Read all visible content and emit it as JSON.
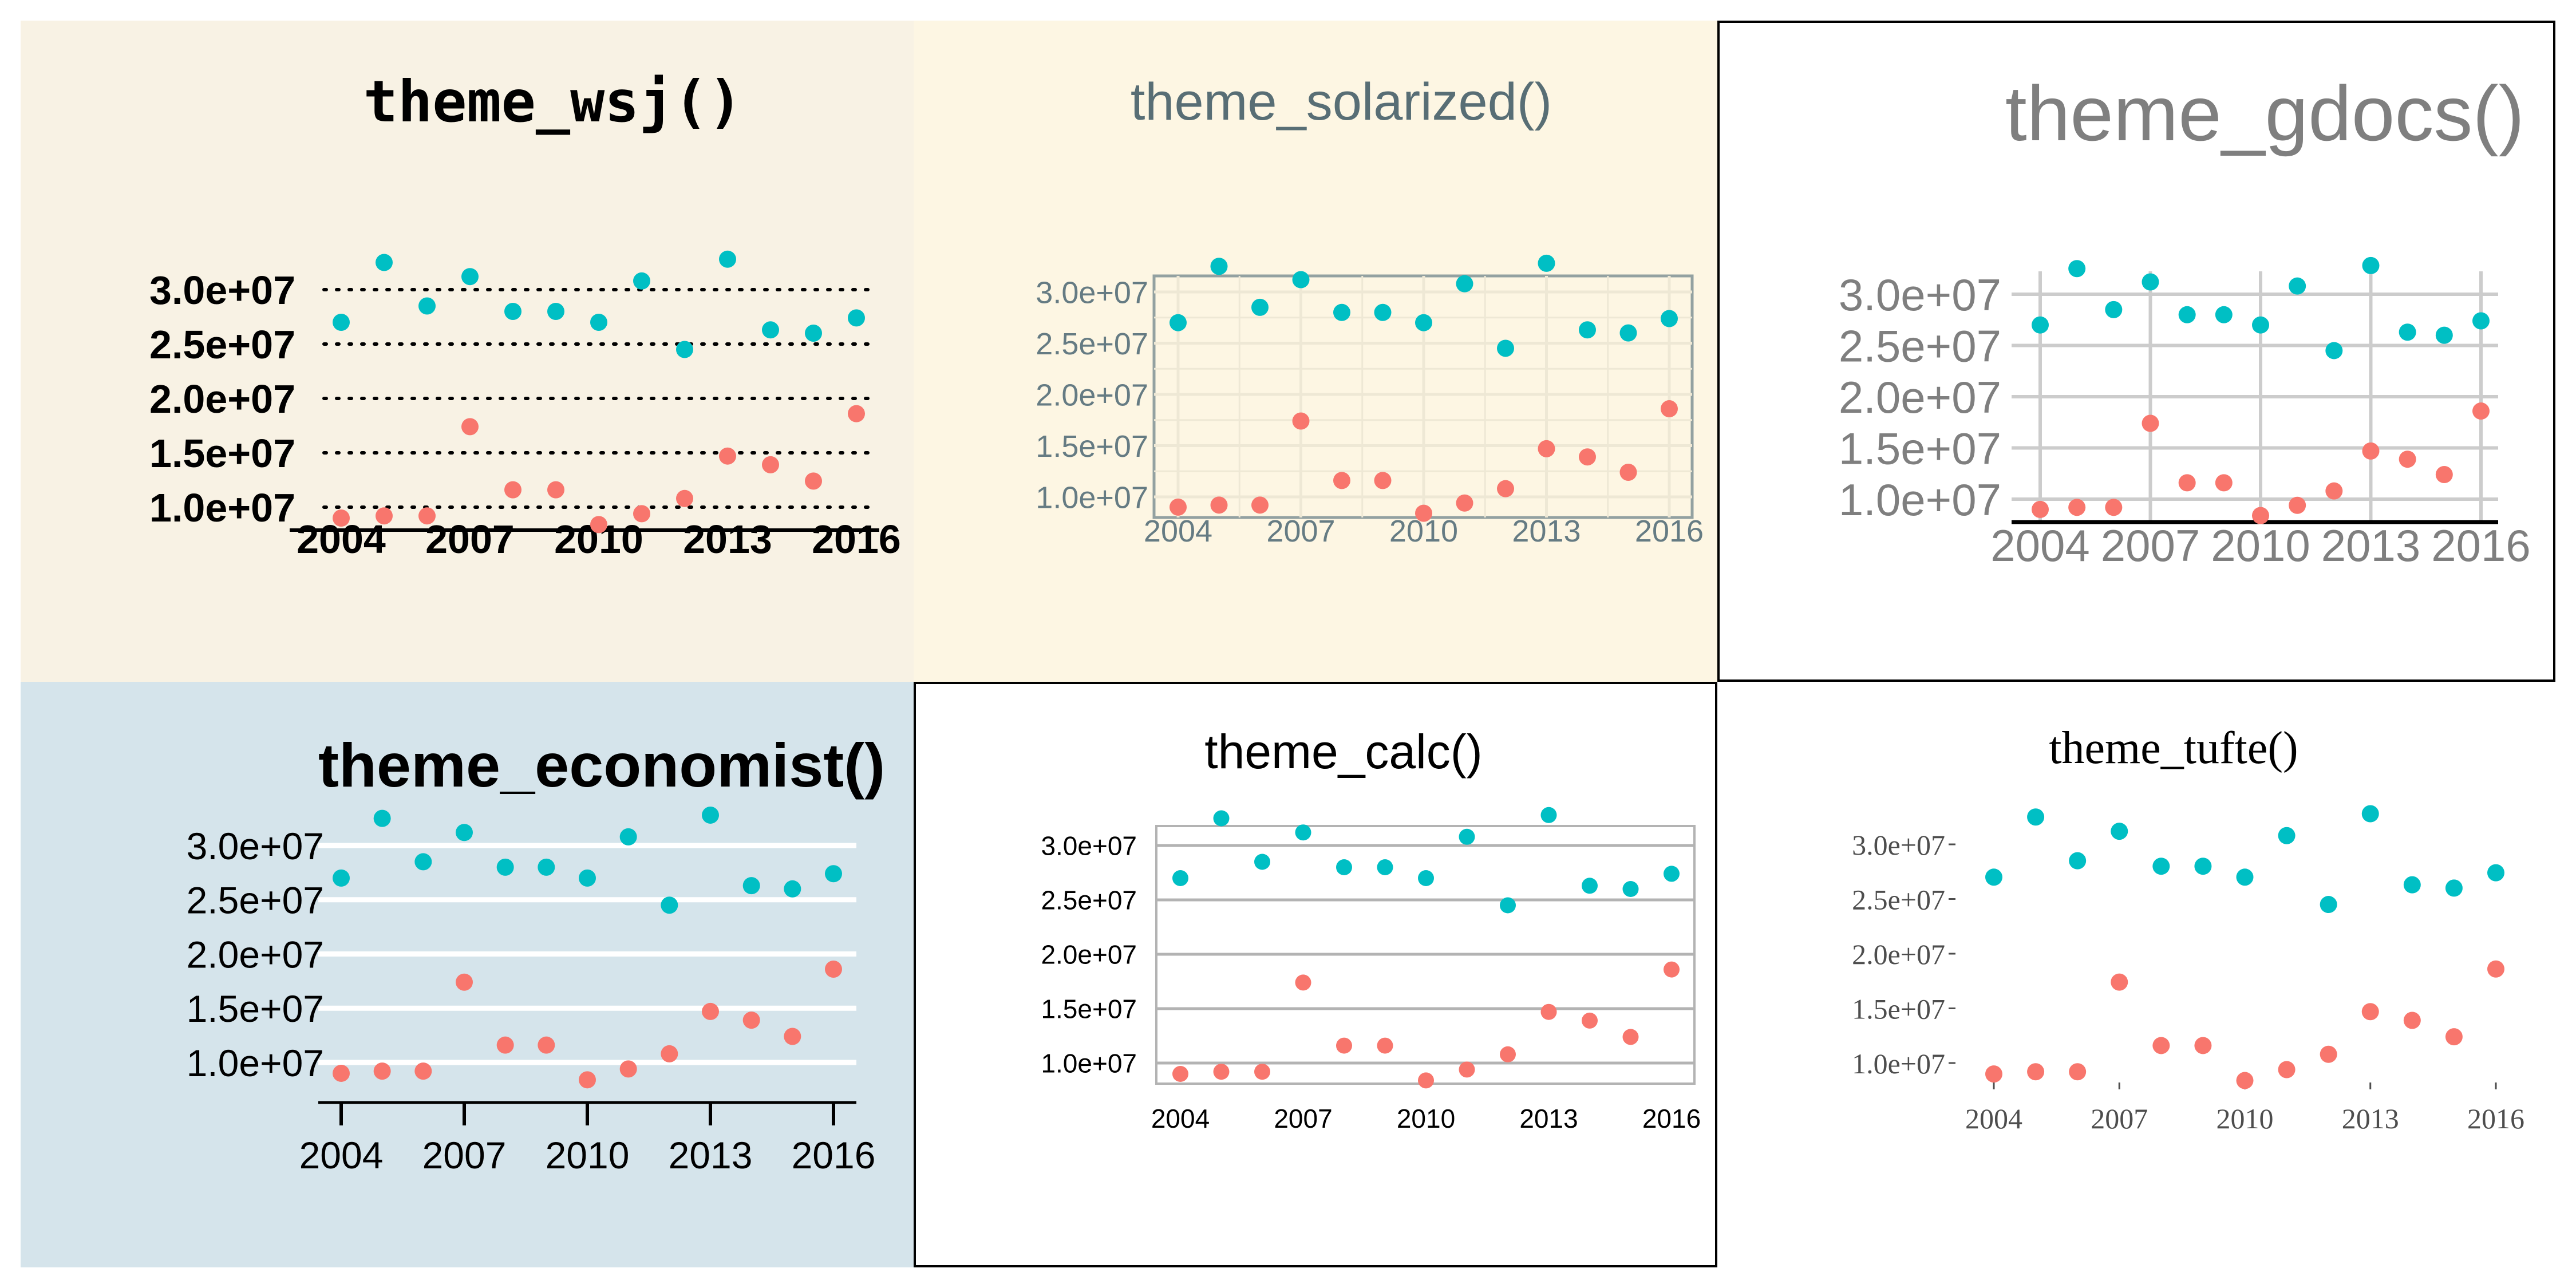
{
  "chart_data": [
    {
      "id": "wsj",
      "type": "scatter",
      "title": "theme_wsj()",
      "xlabel": "",
      "ylabel": "",
      "x_ticks": [
        2004,
        2007,
        2010,
        2013,
        2016
      ],
      "y_ticks": [
        10000000,
        15000000,
        20000000,
        25000000,
        30000000
      ],
      "y_tick_labels": [
        "1.0e+07",
        "1.5e+07",
        "2.0e+07",
        "2.5e+07",
        "3.0e+07"
      ],
      "xlim": [
        2004,
        2016
      ],
      "ylim": [
        8500000,
        33000000
      ],
      "grid": "horizontal dotted",
      "legend": "none",
      "series": [
        {
          "color": "#00bfc4",
          "x": [
            2004,
            2005,
            2006,
            2007,
            2008,
            2009,
            2010,
            2011,
            2012,
            2013,
            2014,
            2015,
            2016
          ],
          "y": [
            27000000,
            32500000,
            28500000,
            31200000,
            28000000,
            28000000,
            27000000,
            30800000,
            24500000,
            32800000,
            26300000,
            26000000,
            27400000
          ]
        },
        {
          "color": "#f8766d",
          "x": [
            2004,
            2005,
            2006,
            2007,
            2008,
            2009,
            2010,
            2011,
            2012,
            2013,
            2014,
            2015,
            2016
          ],
          "y": [
            9000000,
            9200000,
            9200000,
            17400000,
            11600000,
            11600000,
            8400000,
            9400000,
            10800000,
            14700000,
            13900000,
            12400000,
            18600000
          ]
        }
      ]
    },
    {
      "id": "solarized",
      "type": "scatter",
      "title": "theme_solarized()",
      "xlabel": "",
      "ylabel": "",
      "x_ticks": [
        2004,
        2007,
        2010,
        2013,
        2016
      ],
      "y_ticks": [
        10000000,
        15000000,
        20000000,
        25000000,
        30000000
      ],
      "y_tick_labels": [
        "1.0e+07",
        "1.5e+07",
        "2.0e+07",
        "2.5e+07",
        "3.0e+07"
      ],
      "xlim": [
        2004,
        2016
      ],
      "ylim": [
        8500000,
        33000000
      ],
      "grid": "major and minor",
      "legend": "none",
      "series": [
        {
          "color": "#00bfc4",
          "x": [
            2004,
            2005,
            2006,
            2007,
            2008,
            2009,
            2010,
            2011,
            2012,
            2013,
            2014,
            2015,
            2016
          ],
          "y": [
            27000000,
            32500000,
            28500000,
            31200000,
            28000000,
            28000000,
            27000000,
            30800000,
            24500000,
            32800000,
            26300000,
            26000000,
            27400000
          ]
        },
        {
          "color": "#f8766d",
          "x": [
            2004,
            2005,
            2006,
            2007,
            2008,
            2009,
            2010,
            2011,
            2012,
            2013,
            2014,
            2015,
            2016
          ],
          "y": [
            9000000,
            9200000,
            9200000,
            17400000,
            11600000,
            11600000,
            8400000,
            9400000,
            10800000,
            14700000,
            13900000,
            12400000,
            18600000
          ]
        }
      ]
    },
    {
      "id": "gdocs",
      "type": "scatter",
      "title": "theme_gdocs()",
      "xlabel": "",
      "ylabel": "",
      "x_ticks": [
        2004,
        2007,
        2010,
        2013,
        2016
      ],
      "y_ticks": [
        10000000,
        15000000,
        20000000,
        25000000,
        30000000
      ],
      "y_tick_labels": [
        "1.0e+07",
        "1.5e+07",
        "2.0e+07",
        "2.5e+07",
        "3.0e+07"
      ],
      "xlim": [
        2004,
        2016
      ],
      "ylim": [
        8500000,
        33000000
      ],
      "grid": "major",
      "legend": "none",
      "series": [
        {
          "color": "#00bfc4",
          "x": [
            2004,
            2005,
            2006,
            2007,
            2008,
            2009,
            2010,
            2011,
            2012,
            2013,
            2014,
            2015,
            2016
          ],
          "y": [
            27000000,
            32500000,
            28500000,
            31200000,
            28000000,
            28000000,
            27000000,
            30800000,
            24500000,
            32800000,
            26300000,
            26000000,
            27400000
          ]
        },
        {
          "color": "#f8766d",
          "x": [
            2004,
            2005,
            2006,
            2007,
            2008,
            2009,
            2010,
            2011,
            2012,
            2013,
            2014,
            2015,
            2016
          ],
          "y": [
            9000000,
            9200000,
            9200000,
            17400000,
            11600000,
            11600000,
            8400000,
            9400000,
            10800000,
            14700000,
            13900000,
            12400000,
            18600000
          ]
        }
      ]
    },
    {
      "id": "economist",
      "type": "scatter",
      "title": "theme_economist()",
      "xlabel": "",
      "ylabel": "",
      "x_ticks": [
        2004,
        2007,
        2010,
        2013,
        2016
      ],
      "y_ticks": [
        10000000,
        15000000,
        20000000,
        25000000,
        30000000
      ],
      "y_tick_labels": [
        "1.0e+07",
        "1.5e+07",
        "2.0e+07",
        "2.5e+07",
        "3.0e+07"
      ],
      "xlim": [
        2004,
        2016
      ],
      "ylim": [
        8500000,
        33000000
      ],
      "grid": "horizontal white",
      "legend": "none",
      "series": [
        {
          "color": "#00bfc4",
          "x": [
            2004,
            2005,
            2006,
            2007,
            2008,
            2009,
            2010,
            2011,
            2012,
            2013,
            2014,
            2015,
            2016
          ],
          "y": [
            27000000,
            32500000,
            28500000,
            31200000,
            28000000,
            28000000,
            27000000,
            30800000,
            24500000,
            32800000,
            26300000,
            26000000,
            27400000
          ]
        },
        {
          "color": "#f8766d",
          "x": [
            2004,
            2005,
            2006,
            2007,
            2008,
            2009,
            2010,
            2011,
            2012,
            2013,
            2014,
            2015,
            2016
          ],
          "y": [
            9000000,
            9200000,
            9200000,
            17400000,
            11600000,
            11600000,
            8400000,
            9400000,
            10800000,
            14700000,
            13900000,
            12400000,
            18600000
          ]
        }
      ]
    },
    {
      "id": "calc",
      "type": "scatter",
      "title": "theme_calc()",
      "xlabel": "",
      "ylabel": "",
      "x_ticks": [
        2004,
        2007,
        2010,
        2013,
        2016
      ],
      "y_ticks": [
        10000000,
        15000000,
        20000000,
        25000000,
        30000000
      ],
      "y_tick_labels": [
        "1.0e+07",
        "1.5e+07",
        "2.0e+07",
        "2.5e+07",
        "3.0e+07"
      ],
      "xlim": [
        2004,
        2016
      ],
      "ylim": [
        8500000,
        33000000
      ],
      "grid": "horizontal gray",
      "legend": "none",
      "series": [
        {
          "color": "#00bfc4",
          "x": [
            2004,
            2005,
            2006,
            2007,
            2008,
            2009,
            2010,
            2011,
            2012,
            2013,
            2014,
            2015,
            2016
          ],
          "y": [
            27000000,
            32500000,
            28500000,
            31200000,
            28000000,
            28000000,
            27000000,
            30800000,
            24500000,
            32800000,
            26300000,
            26000000,
            27400000
          ]
        },
        {
          "color": "#f8766d",
          "x": [
            2004,
            2005,
            2006,
            2007,
            2008,
            2009,
            2010,
            2011,
            2012,
            2013,
            2014,
            2015,
            2016
          ],
          "y": [
            9000000,
            9200000,
            9200000,
            17400000,
            11600000,
            11600000,
            8400000,
            9400000,
            10800000,
            14700000,
            13900000,
            12400000,
            18600000
          ]
        }
      ]
    },
    {
      "id": "tufte",
      "type": "scatter",
      "title": "theme_tufte()",
      "xlabel": "",
      "ylabel": "",
      "x_ticks": [
        2004,
        2007,
        2010,
        2013,
        2016
      ],
      "y_ticks": [
        10000000,
        15000000,
        20000000,
        25000000,
        30000000
      ],
      "y_tick_labels": [
        "1.0e+07",
        "1.5e+07",
        "2.0e+07",
        "2.5e+07",
        "3.0e+07"
      ],
      "xlim": [
        2004,
        2016
      ],
      "ylim": [
        8500000,
        33000000
      ],
      "grid": "none",
      "legend": "none",
      "series": [
        {
          "color": "#00bfc4",
          "x": [
            2004,
            2005,
            2006,
            2007,
            2008,
            2009,
            2010,
            2011,
            2012,
            2013,
            2014,
            2015,
            2016
          ],
          "y": [
            27000000,
            32500000,
            28500000,
            31200000,
            28000000,
            28000000,
            27000000,
            30800000,
            24500000,
            32800000,
            26300000,
            26000000,
            27400000
          ]
        },
        {
          "color": "#f8766d",
          "x": [
            2004,
            2005,
            2006,
            2007,
            2008,
            2009,
            2010,
            2011,
            2012,
            2013,
            2014,
            2015,
            2016
          ],
          "y": [
            9000000,
            9200000,
            9200000,
            17400000,
            11600000,
            11600000,
            8400000,
            9400000,
            10800000,
            14700000,
            13900000,
            12400000,
            18600000
          ]
        }
      ]
    }
  ]
}
